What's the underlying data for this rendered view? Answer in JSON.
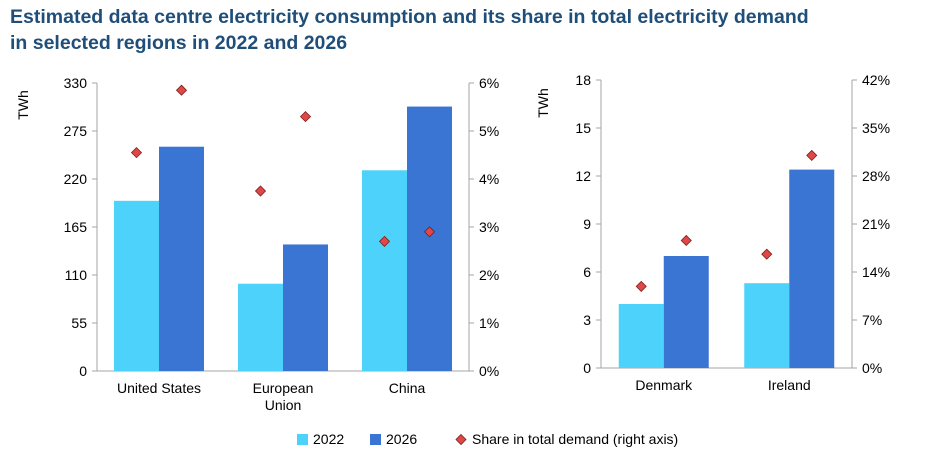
{
  "title_line1": "Estimated data centre electricity consumption and its share in total electricity demand",
  "title_line2": "in selected regions in 2022 and 2026",
  "colors": {
    "y2022": "#4dd2fb",
    "y2026": "#3a75d3",
    "share": "#e04848",
    "axis": "#a6a6a6"
  },
  "legend": {
    "y2022": "2022",
    "y2026": "2026",
    "share": "Share in total demand (right axis)"
  },
  "chart_data": [
    {
      "type": "bar",
      "categories": [
        [
          "United States"
        ],
        [
          "European",
          "Union"
        ],
        [
          "China"
        ]
      ],
      "series": [
        {
          "name": "2022",
          "values": [
            195,
            100,
            230
          ]
        },
        {
          "name": "2026",
          "values": [
            257,
            145,
            303
          ]
        }
      ],
      "share_series": {
        "name": "Share in total demand (right axis)",
        "values_pct": [
          4.55,
          3.75,
          2.7
        ],
        "values_pct_2026": [
          5.85,
          5.3,
          2.9
        ]
      },
      "ylabel": "TWh",
      "ylim": [
        0,
        330
      ],
      "yticks": [
        "0",
        "55",
        "110",
        "165",
        "220",
        "275",
        "330"
      ],
      "y2lim": [
        0,
        6
      ],
      "y2ticks": [
        "0%",
        "1%",
        "2%",
        "3%",
        "4%",
        "5%",
        "6%"
      ]
    },
    {
      "type": "bar",
      "categories": [
        [
          "Denmark"
        ],
        [
          "Ireland"
        ]
      ],
      "series": [
        {
          "name": "2022",
          "values": [
            4,
            5.3
          ]
        },
        {
          "name": "2026",
          "values": [
            7,
            12.4
          ]
        }
      ],
      "share_series": {
        "name": "Share in total demand (right axis)",
        "values_pct": [
          11.9,
          16.6
        ],
        "values_pct_2026": [
          18.6,
          31.0
        ]
      },
      "ylabel": "TWh",
      "ylim": [
        0,
        18
      ],
      "yticks": [
        "0",
        "3",
        "6",
        "9",
        "12",
        "15",
        "18"
      ],
      "y2lim": [
        0,
        42
      ],
      "y2ticks": [
        "0%",
        "7%",
        "14%",
        "21%",
        "28%",
        "35%",
        "42%"
      ]
    }
  ]
}
